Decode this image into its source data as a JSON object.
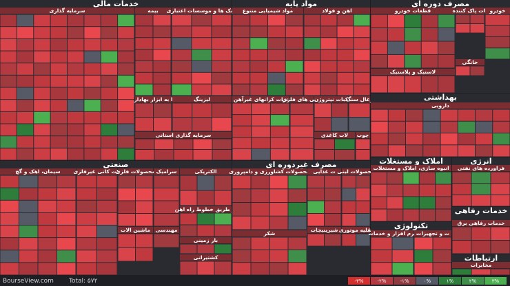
{
  "sectors": [
    {
      "title": "خدمات مالی",
      "subsectors": [
        "سرمایه گذاری",
        "بیمه",
        "بانک ها و موسسات اعتباری",
        "ا به ابزار بهادار",
        "لیزینگ",
        "سرمایه گذاری استانی"
      ]
    },
    {
      "title": "مواد پایه",
      "subsectors": [
        "مواد شیمیایی متنوع",
        "اهن و فولاد",
        "ترات کرانهای غیرآهن",
        "کانی های فلزی",
        "کبات نیتروژن",
        "زغال سنگ",
        "لات کاغذی",
        "چوب"
      ]
    },
    {
      "title": "مصرف دوره ای",
      "subsectors": [
        "قطعات خودرو",
        "نات پاک کننده",
        "خودرو",
        "لاستیک و پلاستیک",
        "خانگی"
      ]
    },
    {
      "title": "بهداشتی",
      "subsectors": [
        "دارویی"
      ]
    },
    {
      "title": "صنعتی",
      "subsectors": [
        "سیمان، اهک و گچ",
        "لات کانی غیرفلزی",
        "محصولات فلزی",
        "سرامیک",
        "الکتریکی",
        "ماشین الات",
        "مهندسی",
        "از طریق خطوط راه اهن",
        "بار زمینی",
        "کشتیرانی"
      ]
    },
    {
      "title": "مصرف غیردوره ای",
      "subsectors": [
        "محصولات کشاورزی و دامپروری",
        "ت غذایی",
        "محصولات لبنی",
        "شیرینیجات",
        "نقلیه موتوری",
        "شکر"
      ]
    },
    {
      "title": "املاک و مستغلات",
      "subsectors": [
        "انبوه سازی، املاک و مستغلات"
      ]
    },
    {
      "title": "انرژی",
      "subsectors": [
        "فراورده های نفتی"
      ]
    },
    {
      "title": "خدمات رفاهی",
      "subsectors": [
        "خدمات رفاهی برق"
      ]
    },
    {
      "title": "تکنولوژی",
      "subsectors": [
        "نرم افزار و خدمات",
        "ت و تجهیزات"
      ]
    },
    {
      "title": "ارتباطات",
      "subsectors": [
        "مخابرات"
      ]
    }
  ],
  "footer": {
    "site": "BourseView.com",
    "total": "Total: ۵۷۲",
    "legend": [
      "-۳%",
      "-۲%",
      "-۱%",
      "۰%",
      "۱%",
      "۲%",
      "۳%"
    ]
  }
}
